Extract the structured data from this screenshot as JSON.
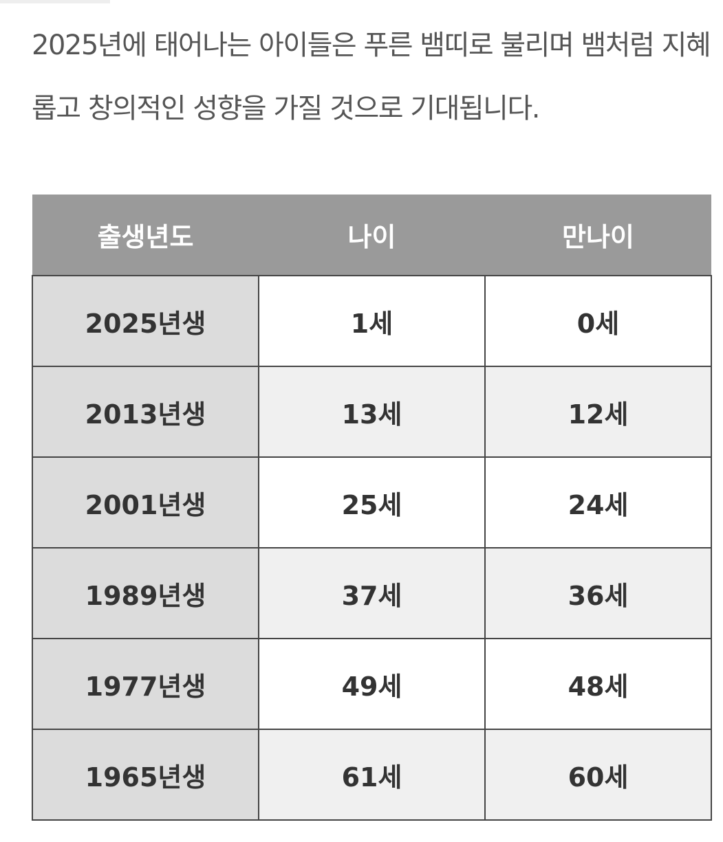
{
  "intro_text": "2025년에 태어나는 아이들은 푸른 뱀띠로 불리며 뱀처럼 지혜롭고 창의적인 성향을 가질 것으로 기대됩니다.",
  "table": {
    "headers": [
      "출생년도",
      "나이",
      "만나이"
    ],
    "rows": [
      {
        "birth_year": "2025년생",
        "age": "1세",
        "full_age": "0세"
      },
      {
        "birth_year": "2013년생",
        "age": "13세",
        "full_age": "12세"
      },
      {
        "birth_year": "2001년생",
        "age": "25세",
        "full_age": "24세"
      },
      {
        "birth_year": "1989년생",
        "age": "37세",
        "full_age": "36세"
      },
      {
        "birth_year": "1977년생",
        "age": "49세",
        "full_age": "48세"
      },
      {
        "birth_year": "1965년생",
        "age": "61세",
        "full_age": "60세"
      }
    ]
  },
  "colors": {
    "header_bg": "#9a9a9a",
    "year_cell_bg": "#dcdcdc",
    "alt_row_bg": "#f0f0f0",
    "border": "#444444"
  }
}
